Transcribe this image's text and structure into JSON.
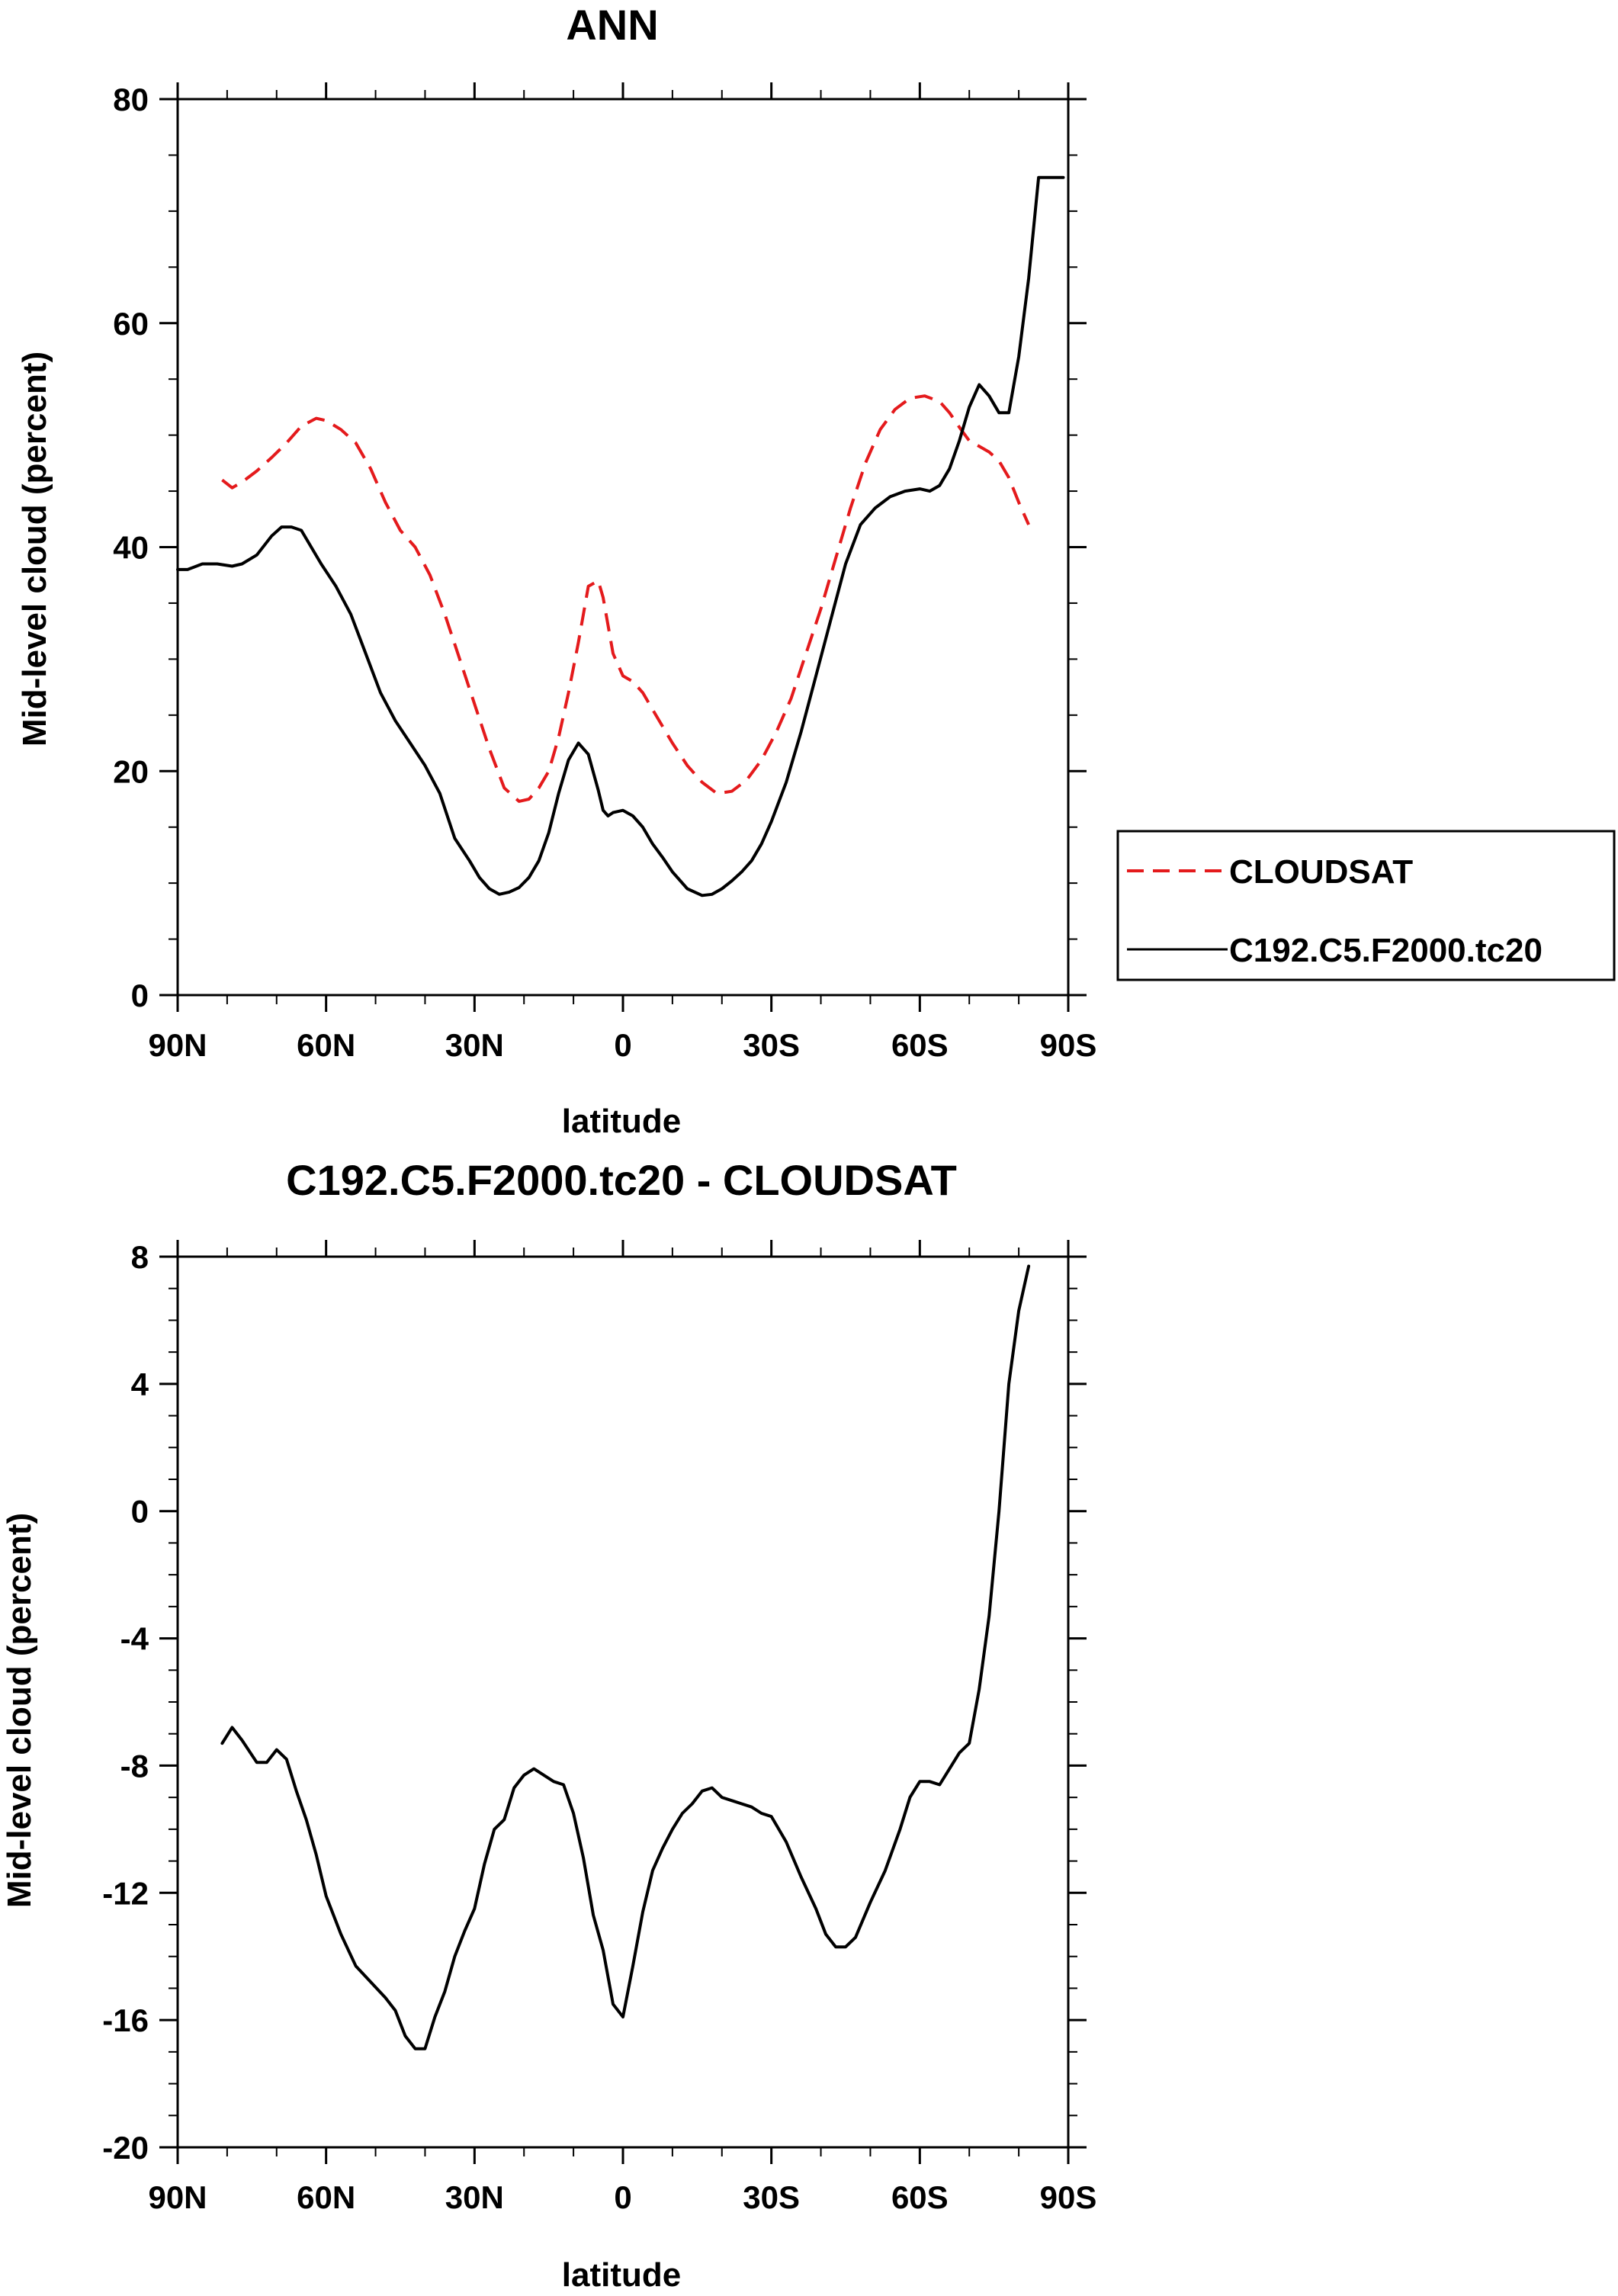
{
  "chart_data": [
    {
      "type": "line",
      "title": "ANN",
      "xlabel": "latitude",
      "ylabel": "Mid-level cloud (percent)",
      "xlim": [
        -90,
        90
      ],
      "ylim": [
        0,
        80
      ],
      "x_ticks": [
        -90,
        -60,
        -30,
        0,
        30,
        60,
        90
      ],
      "x_tick_labels": [
        "90N",
        "60N",
        "30N",
        "0",
        "30S",
        "60S",
        "90S"
      ],
      "y_ticks": [
        0,
        20,
        40,
        60,
        80
      ],
      "y_tick_labels": [
        "0",
        "20",
        "40",
        "60",
        "80"
      ],
      "legend": [
        "CLOUDSAT",
        "C192.C5.F2000.tc20"
      ],
      "series": [
        {
          "name": "CLOUDSAT",
          "color": "#e41a1c",
          "dash": "dashed",
          "x": [
            -81,
            -79,
            -77,
            -74,
            -71,
            -68,
            -65,
            -62,
            -60,
            -57,
            -54,
            -51,
            -48,
            -45,
            -42,
            -39,
            -36,
            -33,
            -30,
            -27,
            -24,
            -21,
            -19,
            -17,
            -15,
            -13,
            -11,
            -9,
            -7,
            -5,
            -4,
            -3,
            -2,
            0,
            2,
            4,
            6,
            8,
            10,
            13,
            16,
            19,
            22,
            25,
            28,
            31,
            34,
            37,
            40,
            43,
            46,
            49,
            52,
            55,
            58,
            61,
            64,
            66,
            68,
            70,
            72,
            74,
            76,
            78,
            80,
            82
          ],
          "y": [
            46.0,
            45.3,
            45.8,
            46.8,
            48.0,
            49.3,
            50.8,
            51.5,
            51.3,
            50.5,
            49.3,
            47.0,
            44.0,
            41.5,
            40.0,
            37.5,
            34.0,
            30.0,
            26.0,
            22.0,
            18.5,
            17.3,
            17.5,
            18.5,
            20.0,
            23.0,
            27.0,
            31.5,
            36.5,
            37.0,
            35.5,
            33.0,
            30.5,
            28.5,
            28.0,
            27.0,
            25.5,
            24.0,
            22.5,
            20.5,
            19.0,
            18.0,
            18.2,
            19.2,
            21.0,
            23.5,
            26.5,
            30.5,
            34.5,
            39.0,
            43.5,
            47.5,
            50.5,
            52.3,
            53.3,
            53.5,
            53.0,
            52.0,
            50.7,
            49.5,
            49.0,
            48.5,
            47.7,
            46.2,
            44.0,
            42.0
          ]
        },
        {
          "name": "C192.C5.F2000.tc20",
          "color": "#000000",
          "dash": "solid",
          "x": [
            -90,
            -88,
            -85,
            -82,
            -79,
            -77,
            -74,
            -71,
            -69,
            -67,
            -65,
            -63,
            -61,
            -58,
            -55,
            -52,
            -49,
            -46,
            -43,
            -40,
            -37,
            -34,
            -31,
            -29,
            -27,
            -25,
            -23,
            -21,
            -19,
            -17,
            -15,
            -13,
            -11,
            -9,
            -7,
            -5,
            -4,
            -3,
            -2,
            0,
            2,
            4,
            6,
            8,
            10,
            13,
            16,
            18,
            20,
            22,
            24,
            26,
            28,
            30,
            33,
            36,
            39,
            42,
            45,
            48,
            51,
            54,
            57,
            60,
            62,
            64,
            66,
            68,
            70,
            72,
            74,
            76,
            78,
            80,
            82,
            84,
            86,
            88,
            89
          ],
          "y": [
            38.0,
            38.0,
            38.5,
            38.5,
            38.3,
            38.5,
            39.3,
            41.0,
            41.8,
            41.8,
            41.5,
            40.0,
            38.5,
            36.5,
            34.0,
            30.5,
            27.0,
            24.5,
            22.5,
            20.5,
            18.0,
            14.0,
            12.0,
            10.5,
            9.5,
            9.0,
            9.2,
            9.6,
            10.5,
            12.0,
            14.5,
            18.0,
            21.0,
            22.5,
            21.5,
            18.3,
            16.5,
            16.0,
            16.3,
            16.5,
            16.0,
            15.0,
            13.5,
            12.3,
            11.0,
            9.5,
            8.9,
            9.0,
            9.5,
            10.2,
            11.0,
            12.0,
            13.5,
            15.5,
            19.0,
            23.5,
            28.5,
            33.5,
            38.5,
            42.0,
            43.5,
            44.5,
            45.0,
            45.2,
            45.0,
            45.5,
            47.0,
            49.5,
            52.5,
            54.5,
            53.5,
            52.0,
            52.0,
            57.0,
            64.0,
            73.0,
            73.0,
            73.0,
            73.0
          ]
        }
      ]
    },
    {
      "type": "line",
      "title": "C192.C5.F2000.tc20 - CLOUDSAT",
      "xlabel": "latitude",
      "ylabel": "Mid-level cloud (percent)",
      "xlim": [
        -90,
        90
      ],
      "ylim": [
        -20,
        8
      ],
      "x_ticks": [
        -90,
        -60,
        -30,
        0,
        30,
        60,
        90
      ],
      "x_tick_labels": [
        "90N",
        "60N",
        "30N",
        "0",
        "30S",
        "60S",
        "90S"
      ],
      "y_ticks": [
        -20,
        -16,
        -12,
        -8,
        -4,
        0,
        4,
        8
      ],
      "y_tick_labels": [
        "-20",
        "-16",
        "-12",
        "-8",
        "-4",
        "0",
        "4",
        "8"
      ],
      "series": [
        {
          "name": "C192.C5.F2000.tc20 - CLOUDSAT",
          "color": "#000000",
          "dash": "solid",
          "x": [
            -81,
            -79,
            -77,
            -74,
            -72,
            -70,
            -68,
            -66,
            -64,
            -62,
            -60,
            -57,
            -54,
            -51,
            -48,
            -46,
            -44,
            -42,
            -40,
            -38,
            -36,
            -34,
            -32,
            -30,
            -28,
            -26,
            -24,
            -22,
            -20,
            -18,
            -16,
            -14,
            -12,
            -10,
            -8,
            -6,
            -4,
            -2,
            0,
            2,
            4,
            6,
            8,
            10,
            12,
            14,
            16,
            18,
            20,
            22,
            24,
            26,
            28,
            30,
            33,
            36,
            39,
            41,
            43,
            45,
            47,
            50,
            53,
            56,
            58,
            60,
            62,
            64,
            66,
            68,
            70,
            72,
            74,
            76,
            78,
            80,
            82
          ],
          "y": [
            -7.3,
            -6.8,
            -7.2,
            -7.9,
            -7.9,
            -7.5,
            -7.8,
            -8.8,
            -9.7,
            -10.8,
            -12.1,
            -13.3,
            -14.3,
            -14.8,
            -15.3,
            -15.7,
            -16.5,
            -16.9,
            -16.9,
            -15.9,
            -15.1,
            -14.0,
            -13.2,
            -12.5,
            -11.1,
            -10.0,
            -9.7,
            -8.7,
            -8.3,
            -8.1,
            -8.3,
            -8.5,
            -8.6,
            -9.5,
            -10.9,
            -12.7,
            -13.8,
            -15.5,
            -15.9,
            -14.3,
            -12.6,
            -11.3,
            -10.6,
            -10.0,
            -9.5,
            -9.2,
            -8.8,
            -8.7,
            -9.0,
            -9.1,
            -9.2,
            -9.3,
            -9.5,
            -9.6,
            -10.4,
            -11.5,
            -12.5,
            -13.3,
            -13.7,
            -13.7,
            -13.4,
            -12.3,
            -11.3,
            -10.0,
            -9.0,
            -8.5,
            -8.5,
            -8.6,
            -8.1,
            -7.6,
            -7.3,
            -5.6,
            -3.3,
            0.0,
            4.0,
            6.3,
            7.7
          ]
        }
      ]
    }
  ]
}
